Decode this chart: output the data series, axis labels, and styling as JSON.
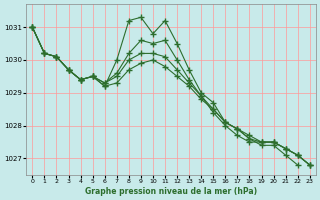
{
  "xlabel": "Graphe pression niveau de la mer (hPa)",
  "x_ticks": [
    0,
    1,
    2,
    3,
    4,
    5,
    6,
    7,
    8,
    9,
    10,
    11,
    12,
    13,
    14,
    15,
    16,
    17,
    18,
    19,
    20,
    21,
    22,
    23
  ],
  "ylim": [
    1026.5,
    1031.7
  ],
  "yticks": [
    1027,
    1028,
    1029,
    1030,
    1031
  ],
  "bg_color": "#c8eaea",
  "grid_color": "#ff9999",
  "line_color": "#2d6e2d",
  "series": [
    [
      1031.0,
      1030.2,
      1030.1,
      1029.7,
      1029.4,
      1029.5,
      1029.2,
      1030.0,
      1031.2,
      1031.3,
      1030.8,
      1031.2,
      1030.5,
      1029.7,
      1029.0,
      1028.7,
      1028.1,
      1027.9,
      1027.6,
      1027.4,
      1027.4,
      1027.1,
      1026.8
    ],
    [
      1031.0,
      1030.2,
      1030.1,
      1029.7,
      1029.4,
      1029.5,
      1029.3,
      1029.6,
      1030.2,
      1030.6,
      1030.5,
      1030.6,
      1030.0,
      1029.4,
      1028.9,
      1028.4,
      1028.0,
      1027.7,
      1027.5,
      1027.5,
      1027.5,
      1027.3,
      1027.1,
      1026.8
    ],
    [
      1031.0,
      1030.2,
      1030.1,
      1029.7,
      1029.4,
      1029.5,
      1029.3,
      1029.5,
      1030.0,
      1030.2,
      1030.2,
      1030.1,
      1029.7,
      1029.3,
      1028.9,
      1028.5,
      1028.1,
      1027.9,
      1027.6,
      1027.5,
      1027.5,
      1027.3,
      1027.1,
      1026.8
    ],
    [
      1031.0,
      1030.2,
      1030.1,
      1029.7,
      1029.4,
      1029.5,
      1029.2,
      1029.3,
      1029.7,
      1029.9,
      1030.0,
      1029.8,
      1029.5,
      1029.2,
      1028.8,
      1028.5,
      1028.1,
      1027.9,
      1027.7,
      1027.5,
      1027.5,
      1027.3,
      1027.1,
      1026.8
    ]
  ],
  "series_x": [
    [
      0,
      1,
      2,
      3,
      4,
      5,
      6,
      7,
      8,
      9,
      10,
      11,
      12,
      13,
      14,
      15,
      16,
      17,
      18,
      19,
      20,
      21,
      22
    ],
    [
      0,
      1,
      2,
      3,
      4,
      5,
      6,
      7,
      8,
      9,
      10,
      11,
      12,
      13,
      14,
      15,
      16,
      17,
      18,
      19,
      20,
      21,
      22,
      23
    ],
    [
      0,
      1,
      2,
      3,
      4,
      5,
      6,
      7,
      8,
      9,
      10,
      11,
      12,
      13,
      14,
      15,
      16,
      17,
      18,
      19,
      20,
      21,
      22,
      23
    ],
    [
      0,
      1,
      2,
      3,
      4,
      5,
      6,
      7,
      8,
      9,
      10,
      11,
      12,
      13,
      14,
      15,
      16,
      17,
      18,
      19,
      20,
      21,
      22,
      23
    ]
  ]
}
